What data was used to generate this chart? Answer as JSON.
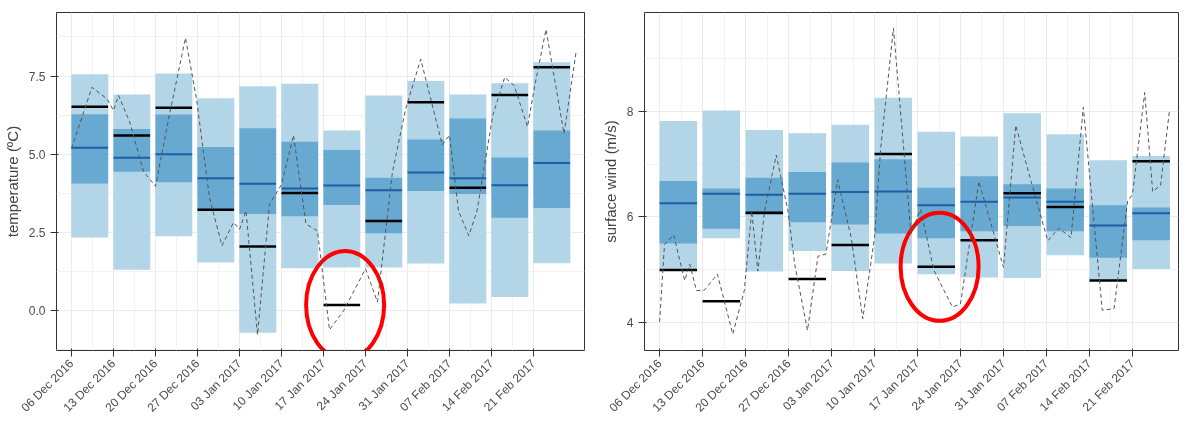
{
  "chart_data": [
    {
      "type": "box",
      "ylabel": "temperature (ºC)",
      "xlim": [
        "2016-12-03T12:00",
        "2017-03-01T12:00"
      ],
      "ylim": [
        -1.27,
        9.53
      ],
      "yticks": [
        {
          "value": 0,
          "label": "0.0"
        },
        2.5,
        {
          "value": 5,
          "label": "5.0"
        },
        7.5
      ],
      "xticks": [
        {
          "value": "2016-12-06",
          "label": "06 Dec 2016"
        },
        {
          "value": "2016-12-13",
          "label": "13 Dec 2016"
        },
        {
          "value": "2016-12-20",
          "label": "20 Dec 2016"
        },
        {
          "value": "2016-12-27",
          "label": "27 Dec 2016"
        },
        {
          "value": "2017-01-03",
          "label": "03 Jan 2017"
        },
        {
          "value": "2017-01-10",
          "label": "10 Jan 2017"
        },
        {
          "value": "2017-01-17",
          "label": "17 Jan 2017"
        },
        {
          "value": "2017-01-24",
          "label": "24 Jan 2017"
        },
        {
          "value": "2017-01-31",
          "label": "31 Jan 2017"
        },
        {
          "value": "2017-02-07",
          "label": "07 Feb 2017"
        },
        {
          "value": "2017-02-14",
          "label": "14 Feb 2017"
        },
        {
          "value": "2017-02-21",
          "label": "21 Feb 2017"
        }
      ],
      "grid": true,
      "series": [
        {
          "color": "#67a9d0",
          "x": [
            "2016-12-06",
            "2016-12-13",
            "2016-12-20",
            "2016-12-27",
            "2017-01-03",
            "2017-01-10",
            "2017-01-17",
            "2017-01-24",
            "2017-01-31",
            "2017-02-07",
            "2017-02-14",
            "2017-02-21"
          ],
          "boxes": [
            {
              "low": 2.34,
              "q1": 4.07,
              "median": 5.21,
              "q3": 6.28,
              "high": 7.56,
              "mean": 6.52
            },
            {
              "low": 1.31,
              "q1": 4.44,
              "median": 4.89,
              "q3": 5.81,
              "high": 6.91,
              "mean": 5.6
            },
            {
              "low": 2.38,
              "q1": 4.11,
              "median": 5.0,
              "q3": 6.27,
              "high": 7.58,
              "mean": 6.49
            },
            {
              "low": 1.54,
              "q1": 3.22,
              "median": 4.23,
              "q3": 5.23,
              "high": 6.79,
              "mean": 3.23
            },
            {
              "low": -0.7,
              "q1": 3.09,
              "median": 4.06,
              "q3": 5.83,
              "high": 7.17,
              "mean": 2.05
            },
            {
              "low": 1.36,
              "q1": 3.02,
              "median": 3.91,
              "q3": 5.4,
              "high": 7.25,
              "mean": 3.76
            },
            {
              "low": 1.38,
              "q1": 3.38,
              "median": 4.0,
              "q3": 5.14,
              "high": 5.76,
              "mean": 0.18
            },
            {
              "low": 1.38,
              "q1": 2.48,
              "median": 3.85,
              "q3": 4.25,
              "high": 6.88,
              "mean": 2.87
            },
            {
              "low": 1.51,
              "q1": 3.83,
              "median": 4.42,
              "q3": 5.47,
              "high": 7.34,
              "mean": 6.66
            },
            {
              "low": 0.23,
              "q1": 3.73,
              "median": 4.23,
              "q3": 6.14,
              "high": 6.91,
              "mean": 3.93
            },
            {
              "low": 0.44,
              "q1": 2.97,
              "median": 4.01,
              "q3": 4.9,
              "high": 7.27,
              "mean": 6.89
            },
            {
              "low": 1.52,
              "q1": 3.28,
              "median": 4.72,
              "q3": 5.76,
              "high": 7.94,
              "mean": 7.78
            }
          ]
        },
        {
          "type": "line",
          "color": "#555555",
          "line_style": "dashed",
          "x": [
            "2016-12-06",
            "2016-12-09T10:00",
            "2016-12-11T22:00",
            "2016-12-13",
            "2016-12-13T20:00",
            "2016-12-15T17:00",
            "2016-12-18",
            "2016-12-20",
            "2016-12-22T10:00",
            "2016-12-25",
            "2016-12-26T20:00",
            "2016-12-29",
            "2016-12-31T02:00",
            "2017-01-02",
            "2017-01-03",
            "2017-01-04T02:00",
            "2017-01-06",
            "2017-01-08",
            "2017-01-10",
            "2017-01-12",
            "2017-01-14T02:00",
            "2017-01-16",
            "2017-01-18",
            "2017-01-20T10:00",
            "2017-01-24",
            "2017-01-26",
            "2017-01-28T12:00",
            "2017-01-30T17:00",
            "2017-02-02T05:00",
            "2017-02-05T19:00",
            "2017-02-07",
            "2017-02-08T12:00",
            "2017-02-10T05:00",
            "2017-02-11T14:00",
            "2017-02-14T05:00",
            "2017-02-16T05:00",
            "2017-02-17T19:00",
            "2017-02-20",
            "2017-02-21T05:00",
            "2017-02-23T02:00",
            "2017-02-26T02:00",
            "2017-02-28T02:00"
          ],
          "values": [
            5.19,
            7.14,
            6.77,
            6.4,
            6.88,
            6.03,
            4.45,
            3.98,
            6.35,
            8.72,
            6.77,
            3.61,
            2.08,
            2.82,
            2.6,
            3.19,
            -0.77,
            3.4,
            4.03,
            5.61,
            2.77,
            2.55,
            -0.61,
            0.02,
            1.34,
            0.28,
            4.45,
            6.46,
            8.04,
            5.3,
            5.61,
            3.19,
            2.4,
            3.19,
            6.24,
            7.46,
            7.19,
            5.88,
            7.19,
            8.99,
            5.66,
            8.25
          ]
        }
      ]
    },
    {
      "type": "box",
      "ylabel": "surface wind (m/s)",
      "xlim": [
        "2016-12-03T13:00",
        "2017-02-28T12:00"
      ],
      "ylim": [
        3.48,
        9.86
      ],
      "yticks": [
        4,
        6,
        8
      ],
      "xticks": [
        {
          "value": "2016-12-06",
          "label": "06 Dec 2016"
        },
        {
          "value": "2016-12-13",
          "label": "13 Dec 2016"
        },
        {
          "value": "2016-12-20",
          "label": "20 Dec 2016"
        },
        {
          "value": "2016-12-27",
          "label": "27 Dec 2016"
        },
        {
          "value": "2017-01-03",
          "label": "03 Jan 2017"
        },
        {
          "value": "2017-01-10",
          "label": "10 Jan 2017"
        },
        {
          "value": "2017-01-17",
          "label": "17 Jan 2017"
        },
        {
          "value": "2017-01-24",
          "label": "24 Jan 2017"
        },
        {
          "value": "2017-01-31",
          "label": "31 Jan 2017"
        },
        {
          "value": "2017-02-07",
          "label": "07 Feb 2017"
        },
        {
          "value": "2017-02-14",
          "label": "14 Feb 2017"
        },
        {
          "value": "2017-02-21",
          "label": "21 Feb 2017"
        }
      ],
      "grid": true,
      "series": [
        {
          "color": "#67a9d0",
          "x": [
            "2016-12-06",
            "2016-12-13",
            "2016-12-20",
            "2016-12-27",
            "2017-01-03",
            "2017-01-10",
            "2017-01-17",
            "2017-01-24",
            "2017-01-31",
            "2017-02-07",
            "2017-02-14",
            "2017-02-21"
          ],
          "boxes": [
            {
              "low": 4.98,
              "q1": 5.5,
              "median": 6.26,
              "q3": 6.68,
              "high": 7.81,
              "mean": 5.0
            },
            {
              "low": 5.6,
              "q1": 5.78,
              "median": 6.44,
              "q3": 6.54,
              "high": 8.01,
              "mean": 4.41
            },
            {
              "low": 4.97,
              "q1": 6.04,
              "median": 6.42,
              "q3": 6.74,
              "high": 7.64,
              "mean": 6.08
            },
            {
              "low": 5.36,
              "q1": 5.9,
              "median": 6.44,
              "q3": 6.85,
              "high": 7.58,
              "mean": 4.83
            },
            {
              "low": 4.98,
              "q1": 5.86,
              "median": 6.47,
              "q3": 7.03,
              "high": 7.74,
              "mean": 5.47
            },
            {
              "low": 5.12,
              "q1": 5.69,
              "median": 6.48,
              "q3": 7.09,
              "high": 8.25,
              "mean": 7.19
            },
            {
              "low": 4.92,
              "q1": 5.6,
              "median": 6.22,
              "q3": 6.55,
              "high": 7.61,
              "mean": 5.06
            },
            {
              "low": 4.86,
              "q1": 5.73,
              "median": 6.29,
              "q3": 6.77,
              "high": 7.52,
              "mean": 5.56
            },
            {
              "low": 4.85,
              "q1": 5.83,
              "median": 6.37,
              "q3": 6.62,
              "high": 7.96,
              "mean": 6.45
            },
            {
              "low": 5.28,
              "q1": 5.73,
              "median": 6.29,
              "q3": 6.54,
              "high": 7.56,
              "mean": 6.19
            },
            {
              "low": 4.8,
              "q1": 5.23,
              "median": 5.84,
              "q3": 6.22,
              "high": 7.07,
              "mean": 4.8
            },
            {
              "low": 5.02,
              "q1": 5.56,
              "median": 6.07,
              "q3": 6.18,
              "high": 7.15,
              "mean": 7.05
            }
          ]
        },
        {
          "type": "line",
          "color": "#555555",
          "line_style": "dashed",
          "x": [
            "2016-12-06",
            "2016-12-06T19:00",
            "2016-12-08T07:00",
            "2016-12-10T02:00",
            "2016-12-10T22:00",
            "2016-12-12",
            "2016-12-13T07:00",
            "2016-12-15T10:00",
            "2016-12-17T22:00",
            "2016-12-19T19:00",
            "2016-12-21",
            "2016-12-22",
            "2016-12-23T02:00",
            "2016-12-25",
            "2016-12-26T22:00",
            "2016-12-28",
            "2016-12-30T02:00",
            "2016-12-31T19:00",
            "2017-01-02T02:00",
            "2017-01-04",
            "2017-01-06T05:00",
            "2017-01-08T02:00",
            "2017-01-10",
            "2017-01-11",
            "2017-01-13T02:00",
            "2017-01-15T22:00",
            "2017-01-17T12:00",
            "2017-01-19T17:00",
            "2017-01-22T17:00",
            "2017-01-24",
            "2017-01-27",
            "2017-01-31",
            "2017-02-02",
            "2017-02-04T12:00",
            "2017-02-07T05:00",
            "2017-02-09",
            "2017-02-11",
            "2017-02-13",
            "2017-02-16T02:00",
            "2017-02-18",
            "2017-02-20T05:00",
            "2017-02-21",
            "2017-02-23",
            "2017-02-24T07:00",
            "2017-02-25T14:00",
            "2017-02-27"
          ],
          "values": [
            4.02,
            5.48,
            5.66,
            4.8,
            5.11,
            4.61,
            4.62,
            4.92,
            3.79,
            4.61,
            6.11,
            4.98,
            6.11,
            7.17,
            6.11,
            5.11,
            3.86,
            5.26,
            5.3,
            6.7,
            5.61,
            4.08,
            5.61,
            7.29,
            9.56,
            5.7,
            6.14,
            4.98,
            4.3,
            4.36,
            6.67,
            5.05,
            7.73,
            6.67,
            5.55,
            5.79,
            5.61,
            8.07,
            4.24,
            4.27,
            6.3,
            6.42,
            8.35,
            6.48,
            6.6,
            7.98
          ]
        }
      ]
    }
  ]
}
